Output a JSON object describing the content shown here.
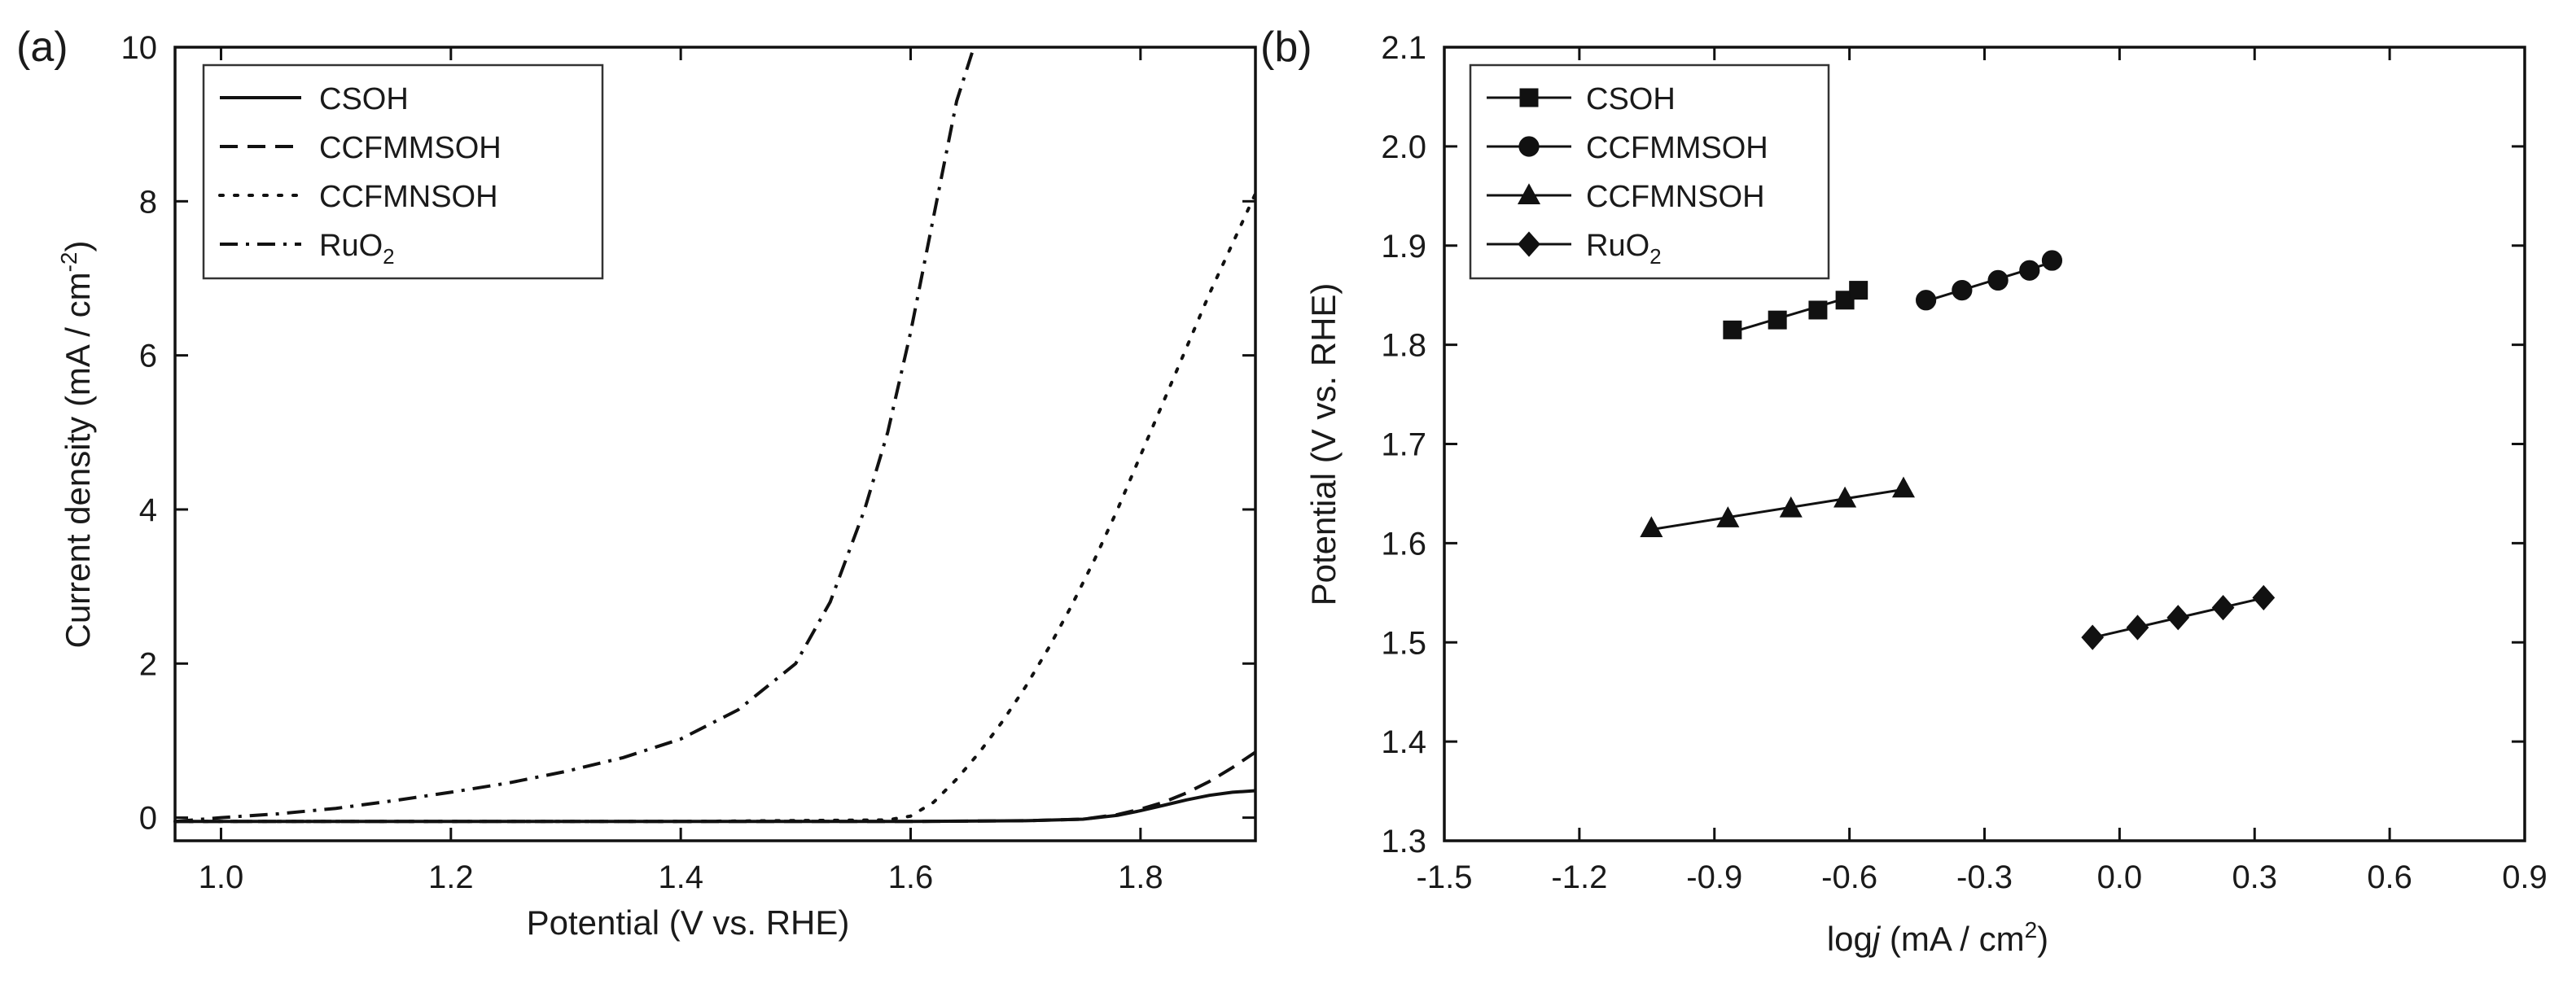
{
  "chart_data": [
    {
      "type": "line",
      "panel_label": "(a)",
      "title": "",
      "xlabel": "Potential (V vs. RHE)",
      "ylabel": "Current density (mA / cm",
      "ylabel_sup": "-2",
      "ylabel_end": ")",
      "xlim": [
        0.96,
        1.9
      ],
      "ylim": [
        -0.3,
        10
      ],
      "xticks": [
        1.0,
        1.2,
        1.4,
        1.6,
        1.8
      ],
      "xtick_labels": [
        "1.0",
        "1.2",
        "1.4",
        "1.6",
        "1.8"
      ],
      "yticks": [
        0,
        2,
        4,
        6,
        8,
        10
      ],
      "ytick_labels": [
        "0",
        "2",
        "4",
        "6",
        "8",
        "10"
      ],
      "legend_position": "top-left",
      "series": [
        {
          "name": "CSOH",
          "label_main": "CSOH",
          "label_sub": "",
          "dash": "solid",
          "x": [
            0.96,
            1.2,
            1.4,
            1.6,
            1.7,
            1.75,
            1.78,
            1.8,
            1.82,
            1.84,
            1.86,
            1.88,
            1.9
          ],
          "y": [
            -0.05,
            -0.05,
            -0.05,
            -0.05,
            -0.04,
            -0.02,
            0.03,
            0.09,
            0.16,
            0.23,
            0.29,
            0.33,
            0.35
          ]
        },
        {
          "name": "CCFMMSOH",
          "label_main": "CCFMMSOH",
          "label_sub": "",
          "dash": "dashed",
          "x": [
            0.96,
            1.2,
            1.4,
            1.6,
            1.7,
            1.75,
            1.78,
            1.8,
            1.82,
            1.84,
            1.86,
            1.88,
            1.9
          ],
          "y": [
            -0.05,
            -0.05,
            -0.05,
            -0.05,
            -0.04,
            -0.02,
            0.04,
            0.11,
            0.2,
            0.32,
            0.47,
            0.65,
            0.85
          ]
        },
        {
          "name": "CCFMNSOH",
          "label_main": "CCFMNSOH",
          "label_sub": "",
          "dash": "dotted",
          "x": [
            0.96,
            1.2,
            1.4,
            1.58,
            1.6,
            1.62,
            1.64,
            1.66,
            1.68,
            1.7,
            1.72,
            1.74,
            1.76,
            1.78,
            1.8,
            1.82,
            1.84,
            1.86,
            1.88,
            1.9
          ],
          "y": [
            -0.05,
            -0.05,
            -0.05,
            -0.03,
            0.02,
            0.2,
            0.5,
            0.85,
            1.25,
            1.7,
            2.2,
            2.75,
            3.35,
            4.0,
            4.7,
            5.4,
            6.1,
            6.8,
            7.45,
            8.1
          ]
        },
        {
          "name": "RuO2",
          "label_main": "RuO",
          "label_sub": "2",
          "dash": "dashdot",
          "x": [
            0.96,
            1.0,
            1.05,
            1.1,
            1.15,
            1.2,
            1.25,
            1.3,
            1.35,
            1.4,
            1.45,
            1.5,
            1.53,
            1.56,
            1.58,
            1.6,
            1.62,
            1.64,
            1.655
          ],
          "y": [
            -0.05,
            0.0,
            0.05,
            0.12,
            0.22,
            0.33,
            0.45,
            0.6,
            0.78,
            1.02,
            1.4,
            2.0,
            2.8,
            4.0,
            5.0,
            6.3,
            7.8,
            9.3,
            10.0
          ]
        }
      ]
    },
    {
      "type": "scatter",
      "panel_label": "(b)",
      "title": "",
      "xlabel_main": "log",
      "xlabel_ital": "j",
      "xlabel_rest": " (mA / cm",
      "xlabel_sup": "2",
      "xlabel_end": ")",
      "ylabel": "Potential (V vs. RHE)",
      "xlim": [
        -1.5,
        0.9
      ],
      "ylim": [
        1.3,
        2.1
      ],
      "xticks": [
        -1.5,
        -1.2,
        -0.9,
        -0.6,
        -0.3,
        0.0,
        0.3,
        0.6,
        0.9
      ],
      "xtick_labels": [
        "-1.5",
        "-1.2",
        "-0.9",
        "-0.6",
        "-0.3",
        "0.0",
        "0.3",
        "0.6",
        "0.9"
      ],
      "yticks": [
        1.3,
        1.4,
        1.5,
        1.6,
        1.7,
        1.8,
        1.9,
        2.0,
        2.1
      ],
      "ytick_labels": [
        "1.3",
        "1.4",
        "1.5",
        "1.6",
        "1.7",
        "1.8",
        "1.9",
        "2.0",
        "2.1"
      ],
      "legend_position": "top-left",
      "series": [
        {
          "name": "CSOH",
          "label_main": "CSOH",
          "label_sub": "",
          "marker": "square",
          "x": [
            -0.86,
            -0.76,
            -0.67,
            -0.61,
            -0.58
          ],
          "y": [
            1.815,
            1.825,
            1.835,
            1.845,
            1.855
          ]
        },
        {
          "name": "CCFMMSOH",
          "label_main": "CCFMMSOH",
          "label_sub": "",
          "marker": "circle",
          "x": [
            -0.43,
            -0.35,
            -0.27,
            -0.2,
            -0.15
          ],
          "y": [
            1.845,
            1.855,
            1.865,
            1.875,
            1.885
          ]
        },
        {
          "name": "CCFMNSOH",
          "label_main": "CCFMNSOH",
          "label_sub": "",
          "marker": "triangle",
          "x": [
            -1.04,
            -0.87,
            -0.73,
            -0.61,
            -0.48
          ],
          "y": [
            1.615,
            1.625,
            1.635,
            1.645,
            1.655
          ]
        },
        {
          "name": "RuO2",
          "label_main": "RuO",
          "label_sub": "2",
          "marker": "diamond",
          "x": [
            -0.06,
            0.04,
            0.13,
            0.23,
            0.32
          ],
          "y": [
            1.505,
            1.515,
            1.525,
            1.535,
            1.545
          ]
        }
      ]
    }
  ]
}
